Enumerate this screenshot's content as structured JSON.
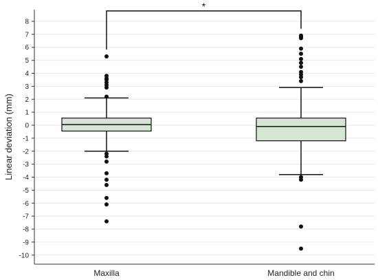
{
  "chart_data": {
    "type": "box",
    "ylabel": "Linear deviation (mm)",
    "ylim": [
      -10.7,
      8.9
    ],
    "yticks": [
      8,
      7,
      6,
      5,
      4,
      3,
      2,
      1,
      0,
      -1,
      -2,
      -3,
      -4,
      -5,
      -6,
      -7,
      -8,
      -9,
      -10
    ],
    "grid": true,
    "box_fill": "#d5e6d2",
    "categories": [
      "Maxilla",
      "Mandible and chin"
    ],
    "boxes": [
      {
        "label": "Maxilla",
        "whisker_low": -2.0,
        "q1": -0.45,
        "median": 0.05,
        "q3": 0.55,
        "whisker_high": 2.1,
        "outliers": [
          5.3,
          3.8,
          3.6,
          3.5,
          3.3,
          3.1,
          2.9,
          2.2,
          -2.2,
          -2.4,
          -2.8,
          -3.7,
          -4.2,
          -4.6,
          -5.6,
          -6.1,
          -7.4
        ]
      },
      {
        "label": "Mandible and chin",
        "whisker_low": -3.8,
        "q1": -1.2,
        "median": -0.1,
        "q3": 0.55,
        "whisker_high": 2.9,
        "outliers": [
          6.9,
          6.8,
          6.7,
          5.9,
          5.5,
          5.1,
          4.8,
          4.5,
          4.1,
          3.9,
          3.7,
          3.4,
          -4.0,
          -4.2,
          -7.8,
          -9.5
        ]
      }
    ],
    "significance": {
      "between": [
        "Maxilla",
        "Mandible and chin"
      ],
      "label": "*",
      "y": 8.8
    }
  }
}
